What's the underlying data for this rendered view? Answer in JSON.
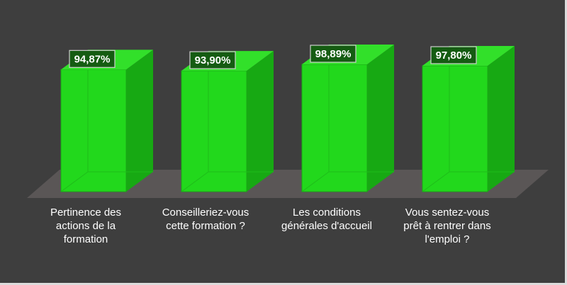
{
  "chart_data": {
    "type": "bar",
    "categories": [
      "Pertinence des\nactions de la\nformation",
      "Conseilleriez-vous\ncette formation ?",
      "Les conditions\ngénérales d'accueil",
      "Vous sentez-vous\nprêt à rentrer dans\nl'emploi ?"
    ],
    "values": [
      94.87,
      93.9,
      98.89,
      97.8
    ],
    "data_labels": [
      "94,87%",
      "93,90%",
      "98,89%",
      "97,80%"
    ],
    "ylim": [
      0,
      100
    ],
    "style": "3d",
    "grid": false,
    "legend": "none"
  },
  "colors": {
    "background": "#3e3e3e",
    "bar_front": "#22d81c",
    "bar_side": "#17a913",
    "bar_top": "#32e02a",
    "floor": "#5a5656",
    "label_box_bg": "#155c12",
    "label_box_border": "#cfcfcf",
    "text": "#ffffff"
  }
}
